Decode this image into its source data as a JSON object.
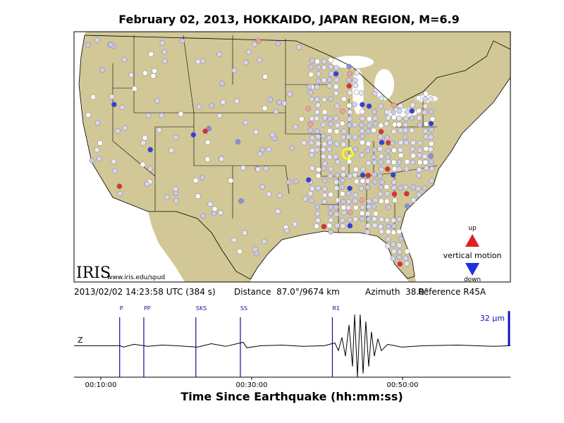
{
  "title": "February 02, 2013, HOKKAIDO, JAPAN REGION, M=6.9",
  "map": {
    "logo": "IRIS",
    "url": "www.iris.edu/spud",
    "legend": {
      "up": "up",
      "label": "vertical motion",
      "down": "down"
    }
  },
  "info": {
    "time": "2013/02/02 14:23:58 UTC (384 s)",
    "distance": "Distance  87.0°/9674 km",
    "azimuth": "Azimuth  38.0°",
    "reference": "Reference R45A"
  },
  "chart_data": {
    "type": "line",
    "channel": "Z",
    "xlabel": "Time Since Earthquake (hh:mm:ss)",
    "scale_value": 32,
    "scale_label": "32 μm",
    "color": "#000000",
    "xlim": [
      387,
      3858
    ],
    "ylim": [
      -29,
      38
    ],
    "xticks": [
      {
        "value": 600,
        "label": "00:10:00"
      },
      {
        "value": 1800,
        "label": "00:30:00"
      },
      {
        "value": 3000,
        "label": "00:50:00"
      }
    ],
    "phases": [
      {
        "name": "P",
        "time": 750
      },
      {
        "name": "PP",
        "time": 942
      },
      {
        "name": "SKS",
        "time": 1356
      },
      {
        "name": "SS",
        "time": 1710
      },
      {
        "name": "R1",
        "time": 2442
      }
    ],
    "x": [
      387,
      752,
      780,
      864,
      976,
      1088,
      1200,
      1368,
      1480,
      1593,
      1733,
      1761,
      1873,
      2041,
      2209,
      2378,
      2462,
      2490,
      2518,
      2546,
      2574,
      2602,
      2619,
      2641,
      2663,
      2686,
      2708,
      2731,
      2753,
      2776,
      2804,
      2832,
      2882,
      2994,
      3163,
      3443,
      3723,
      3858
    ],
    "values": [
      0,
      0,
      -1.3,
      1.3,
      -0.6,
      0.6,
      0,
      -1.3,
      1.9,
      -0.6,
      3.2,
      -1.9,
      0,
      0.6,
      -0.6,
      0,
      2.6,
      -4.5,
      7.7,
      -9.6,
      19.2,
      -19.2,
      28.8,
      -28.8,
      28.8,
      -25.6,
      22.4,
      -19.2,
      12.8,
      -9.6,
      6.4,
      -4.5,
      1.3,
      -1.3,
      0,
      0.6,
      -0.6,
      0
    ]
  }
}
